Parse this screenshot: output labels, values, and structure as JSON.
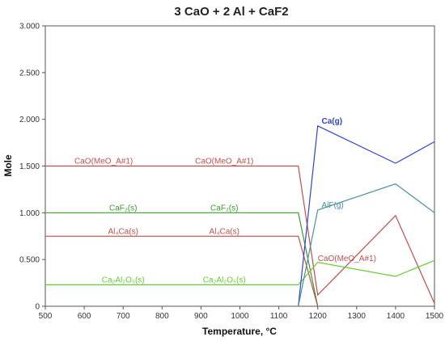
{
  "chart_data": {
    "type": "line",
    "title": "3 CaO + 2 Al + CaF2",
    "xlabel": "Temperature, °C",
    "ylabel": "Mole",
    "xlim": [
      500,
      1500
    ],
    "ylim": [
      0,
      3.0
    ],
    "x_ticks": [
      "500",
      "600",
      "700",
      "800",
      "900",
      "1000",
      "1100",
      "1200",
      "1300",
      "1400",
      "1500"
    ],
    "y_ticks": [
      "0",
      "0.500",
      "1.000",
      "1.500",
      "2.000",
      "2.500",
      "3.000"
    ],
    "grid": false,
    "series": [
      {
        "name": "CaO(MeO_A#1)",
        "color": "#c0504d",
        "x": [
          500,
          1150,
          1200,
          1400,
          1500
        ],
        "y": [
          1.5,
          1.5,
          0.12,
          0.97,
          0.03
        ]
      },
      {
        "name": "CaF2(s)",
        "color": "#3a9a2a",
        "x": [
          500,
          1150,
          1200
        ],
        "y": [
          1.0,
          1.0,
          0.0
        ]
      },
      {
        "name": "Al4Ca(s)",
        "color": "#c0504d",
        "x": [
          500,
          1150,
          1200
        ],
        "y": [
          0.75,
          0.75,
          0.0
        ]
      },
      {
        "name": "Ca2Al2O5(s)",
        "color": "#66cc33",
        "x": [
          500,
          1150,
          1200,
          1400,
          1500
        ],
        "y": [
          0.23,
          0.23,
          0.47,
          0.32,
          0.49
        ]
      },
      {
        "name": "Ca(g)",
        "color": "#3344cc",
        "x": [
          1150,
          1200,
          1400,
          1500
        ],
        "y": [
          0.0,
          1.93,
          1.53,
          1.76
        ]
      },
      {
        "name": "AlF(g)",
        "color": "#4a8fa0",
        "x": [
          1150,
          1200,
          1400,
          1500
        ],
        "y": [
          0.0,
          1.03,
          1.31,
          1.0
        ]
      }
    ],
    "annotations": [
      {
        "text": "CaO(MeO_A#1)",
        "x": 650,
        "y": 1.5,
        "color": "#c0504d"
      },
      {
        "text": "CaO(MeO_A#1)",
        "x": 960,
        "y": 1.5,
        "color": "#c0504d"
      },
      {
        "text": "CaF₂(s)",
        "x": 700,
        "y": 1.0,
        "color": "#3a9a2a"
      },
      {
        "text": "CaF₂(s)",
        "x": 960,
        "y": 1.0,
        "color": "#3a9a2a"
      },
      {
        "text": "Al₄Ca(s)",
        "x": 700,
        "y": 0.75,
        "color": "#c0504d"
      },
      {
        "text": "Al₄Ca(s)",
        "x": 960,
        "y": 0.75,
        "color": "#c0504d"
      },
      {
        "text": "Ca₂Al₂O₅(s)",
        "x": 700,
        "y": 0.23,
        "color": "#66cc33"
      },
      {
        "text": "Ca₂Al₂O₅(s)",
        "x": 960,
        "y": 0.23,
        "color": "#66cc33"
      },
      {
        "text": "Ca(g)",
        "x": 1210,
        "y": 1.93,
        "color": "#3344cc",
        "bold": true
      },
      {
        "text": "AlF(g)",
        "x": 1210,
        "y": 1.03,
        "color": "#4a8fa0"
      },
      {
        "text": "CaO(MeO_A#1)",
        "x": 1200,
        "y": 0.46,
        "color": "#c0504d"
      }
    ]
  }
}
